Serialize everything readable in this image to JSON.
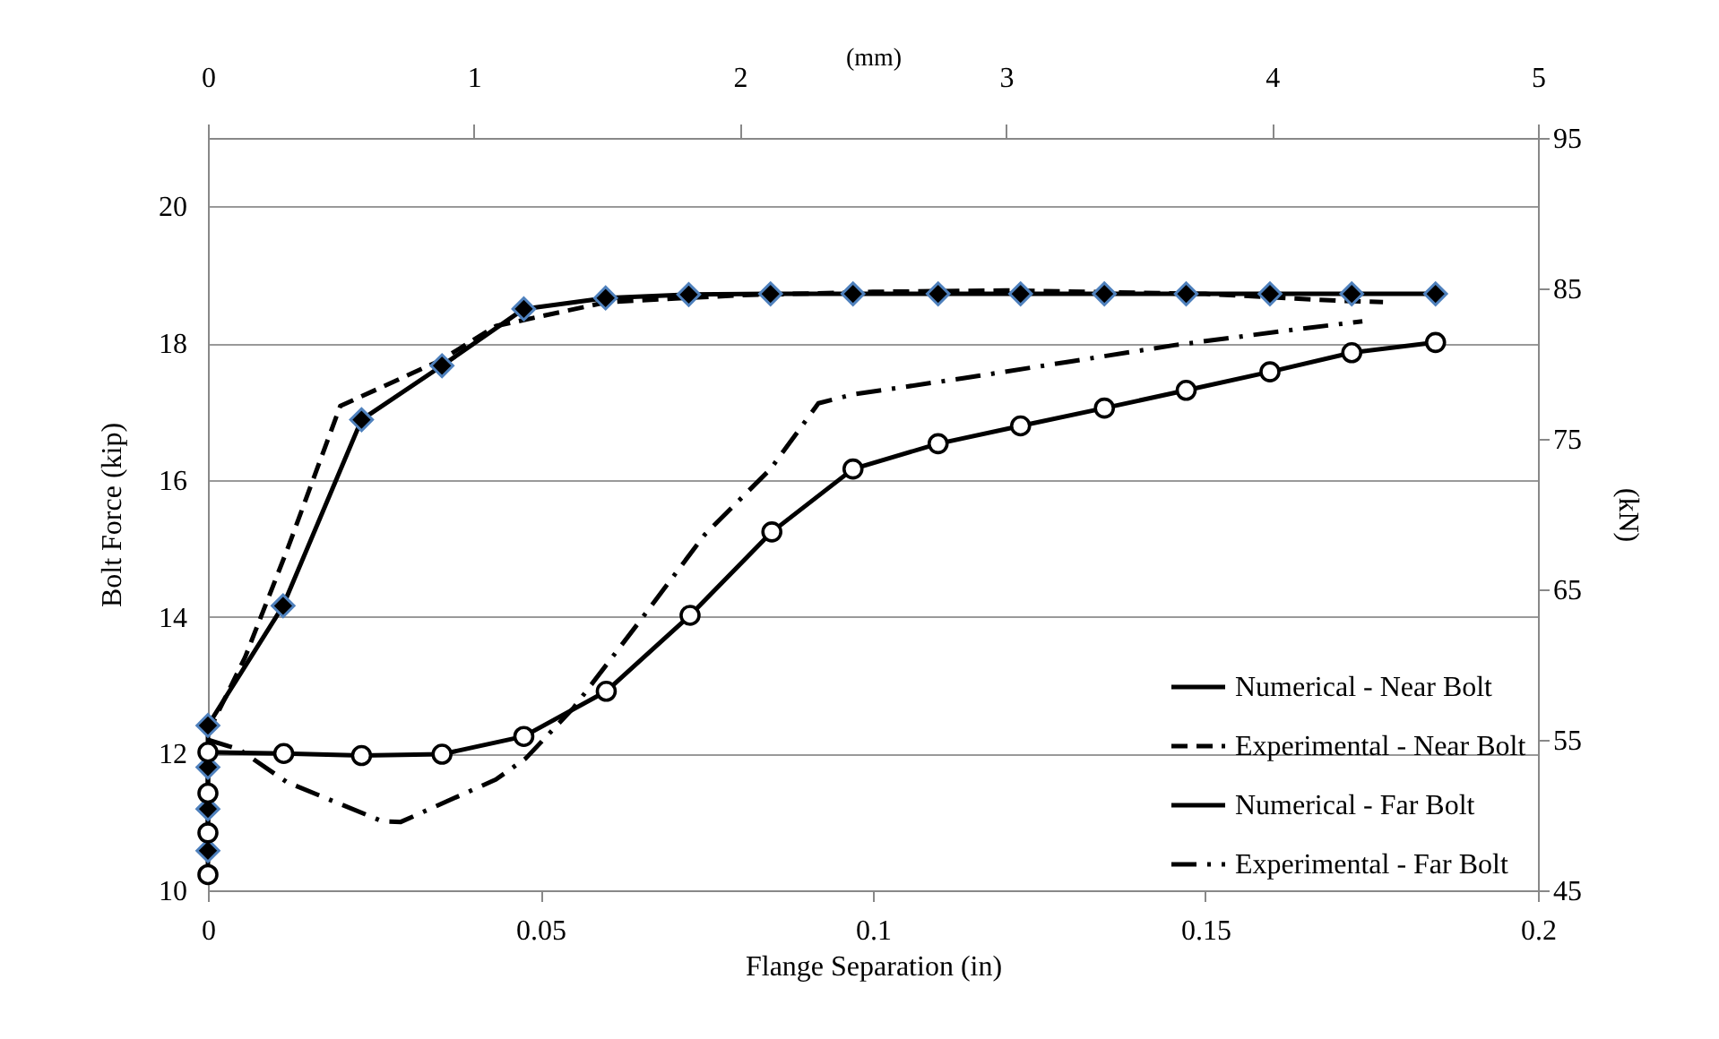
{
  "chart_data": {
    "type": "line",
    "xlabel": "Flange Separation (in)",
    "ylabel": "Bolt Force (kip)",
    "y2label": "(kN)",
    "x2label": "(mm)",
    "xlim": [
      0,
      0.2
    ],
    "xticks": [
      0,
      0.05,
      0.1,
      0.15,
      0.2
    ],
    "ylim": [
      10,
      21
    ],
    "yticks": [
      10,
      12,
      14,
      16,
      18,
      20
    ],
    "y2lim": [
      45,
      95
    ],
    "y2ticks": [
      45,
      55,
      65,
      75,
      85,
      95
    ],
    "x2lim": [
      0,
      5
    ],
    "x2ticks": [
      0,
      1,
      2,
      3,
      4,
      5
    ],
    "grid": "y",
    "legend": "bottom right",
    "series": [
      {
        "name": "Numerical - Near Bolt",
        "color": "#000000",
        "line_style": "solid",
        "marker": "diamond",
        "x": [
          0,
          0,
          0,
          0,
          0.0113,
          0.0231,
          0.0352,
          0.0475,
          0.0598,
          0.0723,
          0.0846,
          0.097,
          0.1098,
          0.1222,
          0.1348,
          0.1471,
          0.1597,
          0.172,
          0.1846
        ],
        "values": [
          10.58,
          11.19,
          11.8,
          12.41,
          14.16,
          16.88,
          17.67,
          18.5,
          18.66,
          18.71,
          18.72,
          18.72,
          18.72,
          18.72,
          18.72,
          18.72,
          18.72,
          18.72,
          18.72
        ]
      },
      {
        "name": "Experimental - Near Bolt",
        "color": "#000000",
        "line_style": "dashed",
        "marker": "none",
        "x": [
          0,
          0.0056,
          0.012,
          0.0199,
          0.035,
          0.0433,
          0.06,
          0.08,
          0.1,
          0.12,
          0.15,
          0.17,
          0.1767
        ],
        "values": [
          12.3,
          13.41,
          15.0,
          17.08,
          17.75,
          18.25,
          18.6,
          18.7,
          18.75,
          18.77,
          18.72,
          18.62,
          18.6
        ]
      },
      {
        "name": "Numerical - Far Bolt",
        "color": "#000000",
        "line_style": "solid",
        "marker": "circle",
        "x": [
          0,
          0,
          0,
          0,
          0.0114,
          0.0231,
          0.0352,
          0.0475,
          0.0599,
          0.0725,
          0.0848,
          0.097,
          0.1098,
          0.1222,
          0.1348,
          0.1471,
          0.1597,
          0.172,
          0.1846
        ],
        "values": [
          10.23,
          10.84,
          11.42,
          12.02,
          12.0,
          11.97,
          11.99,
          12.25,
          12.91,
          14.02,
          15.24,
          16.16,
          16.53,
          16.79,
          17.05,
          17.31,
          17.58,
          17.86,
          18.01
        ]
      },
      {
        "name": "Experimental - Far Bolt",
        "color": "#000000",
        "line_style": "dashdot",
        "marker": "none",
        "x": [
          0,
          0.0047,
          0.0119,
          0.0262,
          0.029,
          0.0433,
          0.0478,
          0.055,
          0.0649,
          0.0747,
          0.0846,
          0.0918,
          0.097,
          0.1138,
          0.1296,
          0.1453,
          0.1619,
          0.1736
        ],
        "values": [
          12.2,
          12.06,
          11.58,
          11.01,
          11.0,
          11.62,
          11.93,
          12.67,
          13.93,
          15.2,
          16.16,
          17.12,
          17.25,
          17.49,
          17.73,
          17.97,
          18.18,
          18.32
        ]
      }
    ]
  }
}
